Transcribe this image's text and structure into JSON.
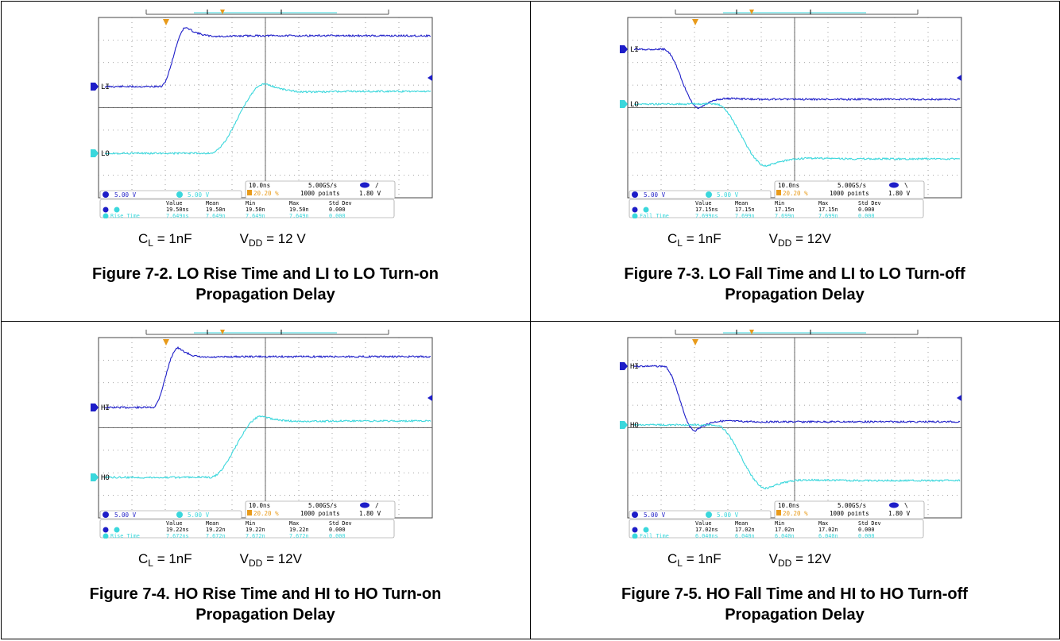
{
  "figures": [
    {
      "ch1": "LI",
      "ch2": "LO",
      "ch1_scale": "5.00 V",
      "ch2_scale": "5.00 V",
      "timebase": "10.0ns",
      "trig_pos": "20.20 %",
      "sample_rate": "5.00GS/s",
      "points": "1000 points",
      "trig_level": "1.80 V",
      "trig_slope": "/",
      "meas_headers": [
        "Value",
        "Mean",
        "Min",
        "Max",
        "Std Dev"
      ],
      "meas_row1": [
        "19.50ns",
        "19.50n",
        "19.50n",
        "19.50n",
        "0.000"
      ],
      "meas_row2_label": "Rise Time",
      "meas_row2": [
        "7.649ns",
        "7.649n",
        "7.649n",
        "7.649n",
        "0.000"
      ],
      "cl": "= 1nF",
      "vdd": "= 12 V",
      "caption_line1": "Figure 7-2. LO Rise Time and LI to LO Turn-on",
      "caption_line2": "Propagation Delay"
    },
    {
      "ch1": "LI",
      "ch2": "LO",
      "ch1_scale": "5.00 V",
      "ch2_scale": "5.00 V",
      "timebase": "10.0ns",
      "trig_pos": "20.20 %",
      "sample_rate": "5.00GS/s",
      "points": "1000 points",
      "trig_level": "1.80 V",
      "trig_slope": "\\",
      "meas_headers": [
        "Value",
        "Mean",
        "Min",
        "Max",
        "Std Dev"
      ],
      "meas_row1": [
        "17.15ns",
        "17.15n",
        "17.15n",
        "17.15n",
        "0.000"
      ],
      "meas_row2_label": "Fall Time",
      "meas_row2": [
        "7.699ns",
        "7.699n",
        "7.699n",
        "7.699n",
        "0.000"
      ],
      "cl": "= 1nF",
      "vdd": "= 12V",
      "caption_line1": "Figure 7-3. LO Fall Time and LI to LO Turn-off",
      "caption_line2": "Propagation Delay"
    },
    {
      "ch1": "HI",
      "ch2": "HO",
      "ch1_scale": "5.00 V",
      "ch2_scale": "5.00 V",
      "timebase": "10.0ns",
      "trig_pos": "20.20 %",
      "sample_rate": "5.00GS/s",
      "points": "1000 points",
      "trig_level": "1.80 V",
      "trig_slope": "/",
      "meas_headers": [
        "Value",
        "Mean",
        "Min",
        "Max",
        "Std Dev"
      ],
      "meas_row1": [
        "19.22ns",
        "19.22n",
        "19.22n",
        "19.22n",
        "0.000"
      ],
      "meas_row2_label": "Rise Time",
      "meas_row2": [
        "7.672ns",
        "7.672n",
        "7.672n",
        "7.672n",
        "0.000"
      ],
      "cl": "= 1nF",
      "vdd": "= 12V",
      "caption_line1": "Figure 7-4. HO Rise Time and HI to HO Turn-on",
      "caption_line2": "Propagation Delay"
    },
    {
      "ch1": "HI",
      "ch2": "HO",
      "ch1_scale": "5.00 V",
      "ch2_scale": "5.00 V",
      "timebase": "10.0ns",
      "trig_pos": "20.20 %",
      "sample_rate": "5.00GS/s",
      "points": "1000 points",
      "trig_level": "1.80 V",
      "trig_slope": "\\",
      "meas_headers": [
        "Value",
        "Mean",
        "Min",
        "Max",
        "Std Dev"
      ],
      "meas_row1": [
        "17.02ns",
        "17.02n",
        "17.02n",
        "17.02n",
        "0.000"
      ],
      "meas_row2_label": "Fall Time",
      "meas_row2": [
        "6.040ns",
        "6.040n",
        "6.040n",
        "6.040n",
        "0.000"
      ],
      "cl": "= 1nF",
      "vdd": "= 12V",
      "caption_line1": "Figure 7-5. HO Fall Time and HI to HO Turn-off",
      "caption_line2": "Propagation Delay"
    }
  ],
  "colors": {
    "ch1": "#1d1dc8",
    "ch2": "#3ad7dc",
    "trigger": "#e89a1a",
    "text": "#000000"
  }
}
